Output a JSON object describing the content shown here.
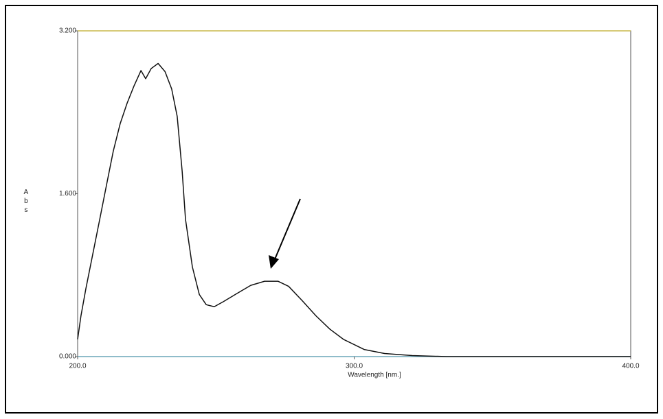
{
  "chart_data": {
    "type": "line",
    "x_label": "Wavelength [nm.]",
    "y_label": "Abs",
    "x": [
      200,
      201.2,
      203,
      205.5,
      208,
      210.4,
      212.9,
      215.4,
      217.9,
      220.4,
      222.9,
      224.6,
      226.6,
      229.1,
      231.6,
      234,
      236,
      237.8,
      239,
      241.5,
      244,
      246.5,
      249.4,
      252.7,
      257.6,
      262.6,
      267.6,
      272.5,
      276.3,
      281.2,
      286.2,
      291.2,
      296.1,
      303.6,
      311,
      321,
      333.4,
      400
    ],
    "series": [
      {
        "color": "#111111",
        "values": [
          0.17,
          0.4,
          0.67,
          1.01,
          1.35,
          1.68,
          2.02,
          2.29,
          2.49,
          2.66,
          2.81,
          2.73,
          2.83,
          2.88,
          2.8,
          2.63,
          2.36,
          1.82,
          1.35,
          0.88,
          0.61,
          0.51,
          0.49,
          0.54,
          0.62,
          0.7,
          0.74,
          0.74,
          0.69,
          0.55,
          0.4,
          0.27,
          0.17,
          0.07,
          0.03,
          0.01,
          0,
          0
        ]
      }
    ],
    "xlim": [
      200,
      400
    ],
    "ylim": [
      0,
      3.2
    ],
    "xticks": [
      {
        "value": 200,
        "label": "200.0"
      },
      {
        "value": 300,
        "label": "300.0"
      },
      {
        "value": 400,
        "label": "400.0"
      }
    ],
    "yticks": [
      {
        "value": 0,
        "label": "0.000"
      },
      {
        "value": 1.6,
        "label": "1.600"
      },
      {
        "value": 3.2,
        "label": "3.200"
      }
    ],
    "grid": false
  }
}
